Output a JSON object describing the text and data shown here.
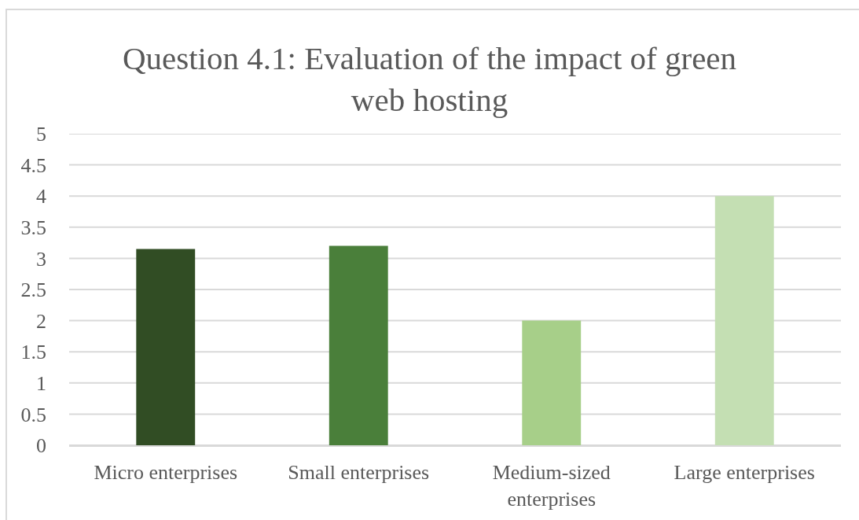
{
  "chart_data": {
    "type": "bar",
    "title": "Question 4.1: Evaluation of the impact of green web hosting",
    "categories": [
      "Micro enterprises",
      "Small enterprises",
      "Medium-sized enterprises",
      "Large enterprises"
    ],
    "values": [
      3.15,
      3.2,
      2.0,
      4.0
    ],
    "colors": [
      "#314d24",
      "#4a7f3a",
      "#a7cf89",
      "#c4dfb3"
    ],
    "ylim": [
      0,
      5
    ],
    "yticks": [
      0,
      0.5,
      1,
      1.5,
      2,
      2.5,
      3,
      3.5,
      4,
      4.5,
      5
    ],
    "grid": "y"
  }
}
